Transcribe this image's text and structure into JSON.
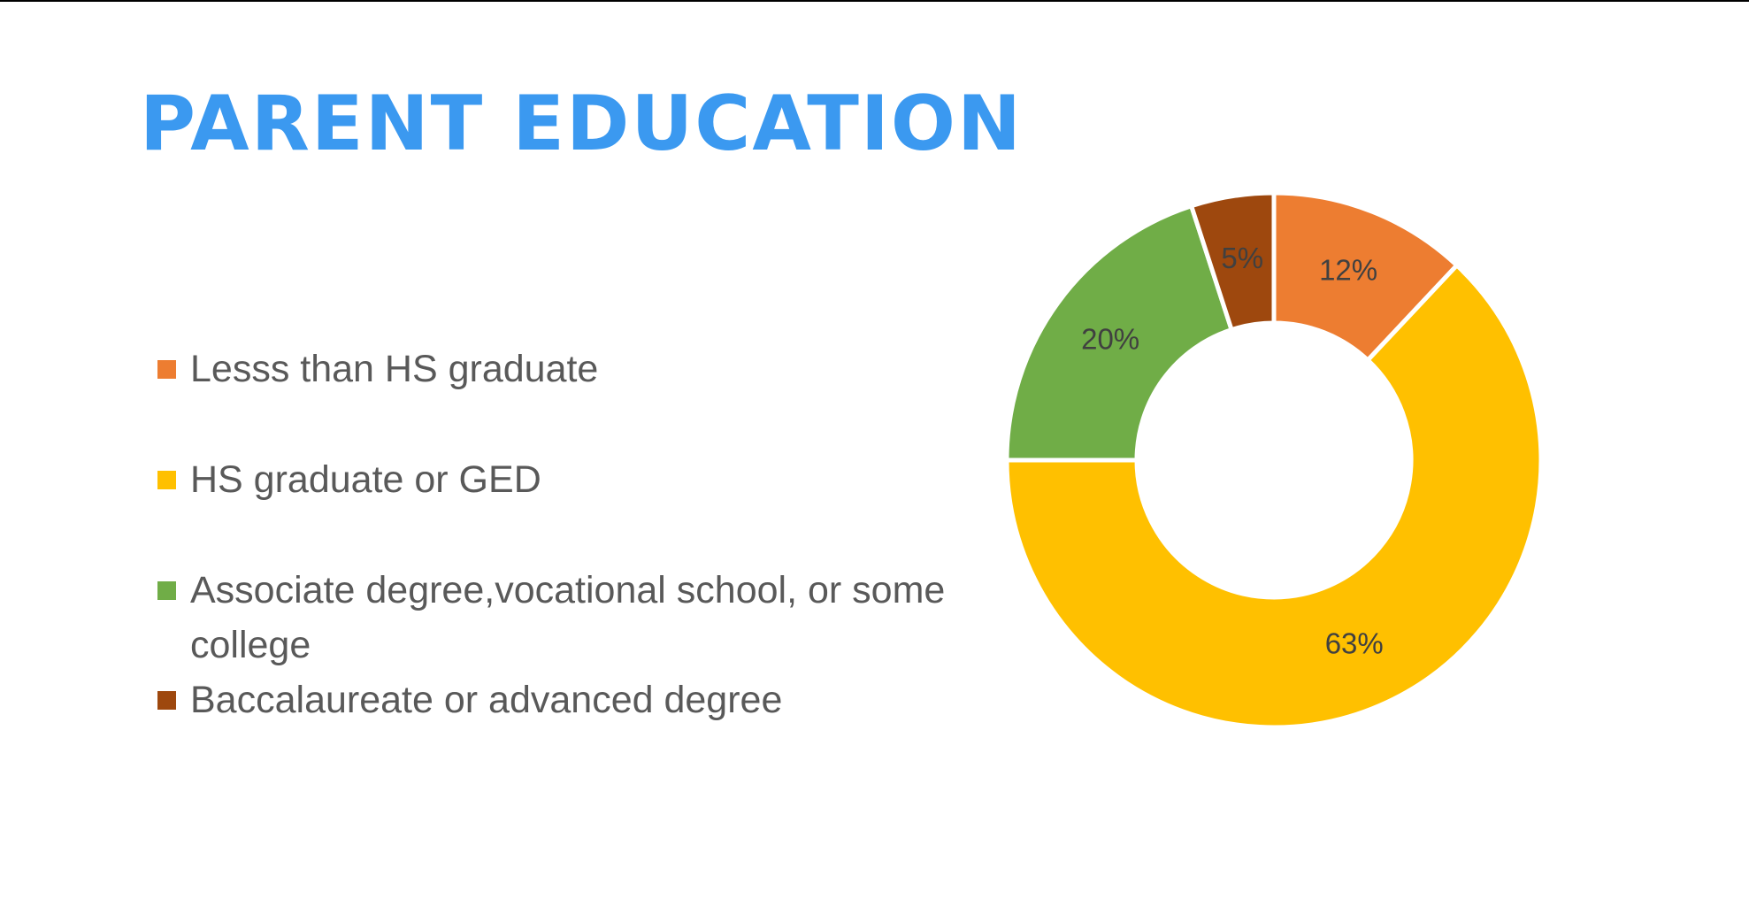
{
  "slide": {
    "title": "PARENT EDUCATION"
  },
  "chart_data": {
    "type": "pie",
    "variant": "doughnut",
    "categories": [
      "Lesss than HS graduate",
      "HS graduate or GED",
      "Associate degree,vocational school, or some college",
      "Baccalaureate or advanced degree"
    ],
    "values": [
      12,
      63,
      20,
      5
    ],
    "data_labels": [
      "12%",
      "63%",
      "20%",
      "5%"
    ],
    "colors": [
      "#ed7d31",
      "#ffc000",
      "#70ad47",
      "#9e480e"
    ],
    "legend_placement": "left",
    "title": "",
    "start_angle": "12 o'clock, clockwise"
  }
}
